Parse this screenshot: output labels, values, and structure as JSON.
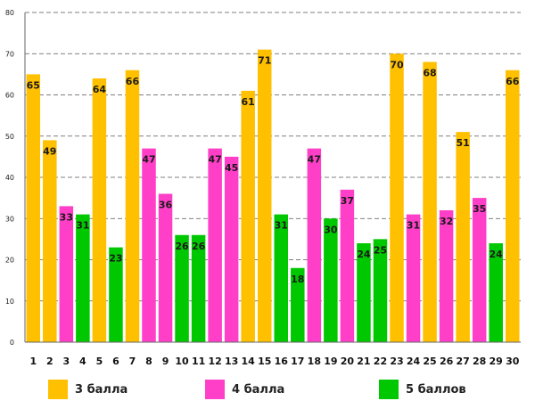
{
  "chart_data": {
    "type": "bar",
    "title": "",
    "xlabel": "",
    "ylabel": "",
    "ylim": [
      0,
      80
    ],
    "yticks": [
      0,
      10,
      20,
      30,
      40,
      50,
      60,
      70,
      80
    ],
    "categories": [
      "1",
      "2",
      "3",
      "4",
      "5",
      "6",
      "7",
      "8",
      "9",
      "10",
      "11",
      "12",
      "13",
      "14",
      "15",
      "16",
      "17",
      "18",
      "19",
      "20",
      "21",
      "22",
      "23",
      "24",
      "25",
      "26",
      "27",
      "28",
      "29",
      "30"
    ],
    "values": [
      65,
      49,
      33,
      31,
      64,
      23,
      66,
      47,
      36,
      26,
      26,
      47,
      45,
      61,
      71,
      31,
      18,
      47,
      30,
      37,
      24,
      25,
      70,
      31,
      68,
      32,
      51,
      35,
      24,
      66
    ],
    "groups": [
      "g3",
      "g3",
      "g4",
      "g5",
      "g3",
      "g5",
      "g3",
      "g4",
      "g4",
      "g5",
      "g5",
      "g4",
      "g4",
      "g3",
      "g3",
      "g5",
      "g5",
      "g4",
      "g5",
      "g4",
      "g5",
      "g5",
      "g3",
      "g4",
      "g3",
      "g4",
      "g3",
      "g4",
      "g5",
      "g3"
    ],
    "legend": [
      {
        "key": "g3",
        "label": "3 балла",
        "color": "#FFC000"
      },
      {
        "key": "g4",
        "label": "4 балла",
        "color": "#FF3FC8"
      },
      {
        "key": "g5",
        "label": "5 баллов",
        "color": "#00C800"
      }
    ],
    "grid": true,
    "legend_position": "bottom"
  }
}
